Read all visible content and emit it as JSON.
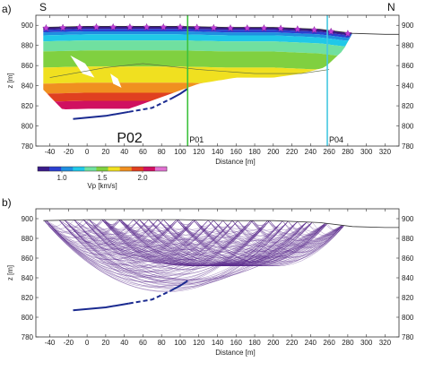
{
  "chart_data": [
    {
      "type": "heatmap",
      "panel_label": "a)",
      "left_label": "S",
      "right_label": "N",
      "xlabel": "Distance [m]",
      "ylabel": "z [m]",
      "xlim": [
        -55,
        335
      ],
      "ylim": [
        780,
        910
      ],
      "x_ticks": [
        -40,
        -20,
        0,
        20,
        40,
        60,
        80,
        100,
        120,
        140,
        160,
        180,
        200,
        220,
        240,
        260,
        280,
        300,
        320
      ],
      "y_ticks": [
        780,
        800,
        820,
        840,
        860,
        880,
        900
      ],
      "profile_label": "P02",
      "wells": [
        {
          "name": "P01",
          "x": 108,
          "color": "#3cc23c"
        },
        {
          "name": "P04",
          "x": 258,
          "color": "#45c8e0"
        }
      ],
      "colorbar": {
        "label": "Vp [km/s]",
        "tick_labels": [
          "1.0",
          "1.5",
          "2.0"
        ],
        "tick_values": [
          1.0,
          1.5,
          2.0
        ],
        "range": [
          0.7,
          2.3
        ],
        "colors": [
          "#3a1a8a",
          "#2b3fd0",
          "#1f8fe0",
          "#20c8e8",
          "#70e0a0",
          "#80d040",
          "#f0e020",
          "#f09020",
          "#e04020",
          "#d01060",
          "#e070d0"
        ]
      },
      "surface": [
        [
          -47,
          898
        ],
        [
          0,
          899
        ],
        [
          50,
          899
        ],
        [
          100,
          899
        ],
        [
          150,
          898
        ],
        [
          200,
          898
        ],
        [
          250,
          896
        ],
        [
          285,
          892
        ],
        [
          320,
          891
        ],
        [
          335,
          891
        ]
      ],
      "refractor": [
        [
          -15,
          807
        ],
        [
          20,
          810
        ],
        [
          45,
          814
        ],
        [
          70,
          818
        ],
        [
          90,
          827
        ],
        [
          100,
          832
        ],
        [
          108,
          837
        ]
      ],
      "model_bottom": [
        [
          -47,
          836
        ],
        [
          -25,
          815
        ],
        [
          -15,
          802
        ],
        [
          5,
          802
        ],
        [
          30,
          812
        ],
        [
          60,
          822
        ],
        [
          90,
          832
        ],
        [
          120,
          842
        ],
        [
          160,
          848
        ],
        [
          200,
          848
        ],
        [
          230,
          852
        ],
        [
          255,
          858
        ],
        [
          275,
          875
        ],
        [
          285,
          892
        ]
      ]
    },
    {
      "type": "line",
      "panel_label": "b)",
      "xlabel": "Distance [m]",
      "ylabel": "z [m]",
      "xlim": [
        -55,
        335
      ],
      "ylim": [
        780,
        910
      ],
      "x_ticks": [
        -40,
        -20,
        0,
        20,
        40,
        60,
        80,
        100,
        120,
        140,
        160,
        180,
        200,
        220,
        240,
        260,
        280,
        300,
        320
      ],
      "y_ticks": [
        780,
        800,
        820,
        840,
        860,
        880,
        900
      ],
      "ray_color": "#5a2a8c",
      "surface": [
        [
          -47,
          898
        ],
        [
          0,
          899
        ],
        [
          50,
          899
        ],
        [
          100,
          899
        ],
        [
          150,
          898
        ],
        [
          200,
          898
        ],
        [
          250,
          896
        ],
        [
          285,
          892
        ],
        [
          320,
          891
        ],
        [
          335,
          891
        ]
      ],
      "refractor": [
        [
          -15,
          807
        ],
        [
          20,
          810
        ],
        [
          45,
          814
        ],
        [
          70,
          818
        ],
        [
          90,
          827
        ],
        [
          100,
          832
        ],
        [
          108,
          837
        ]
      ]
    }
  ]
}
